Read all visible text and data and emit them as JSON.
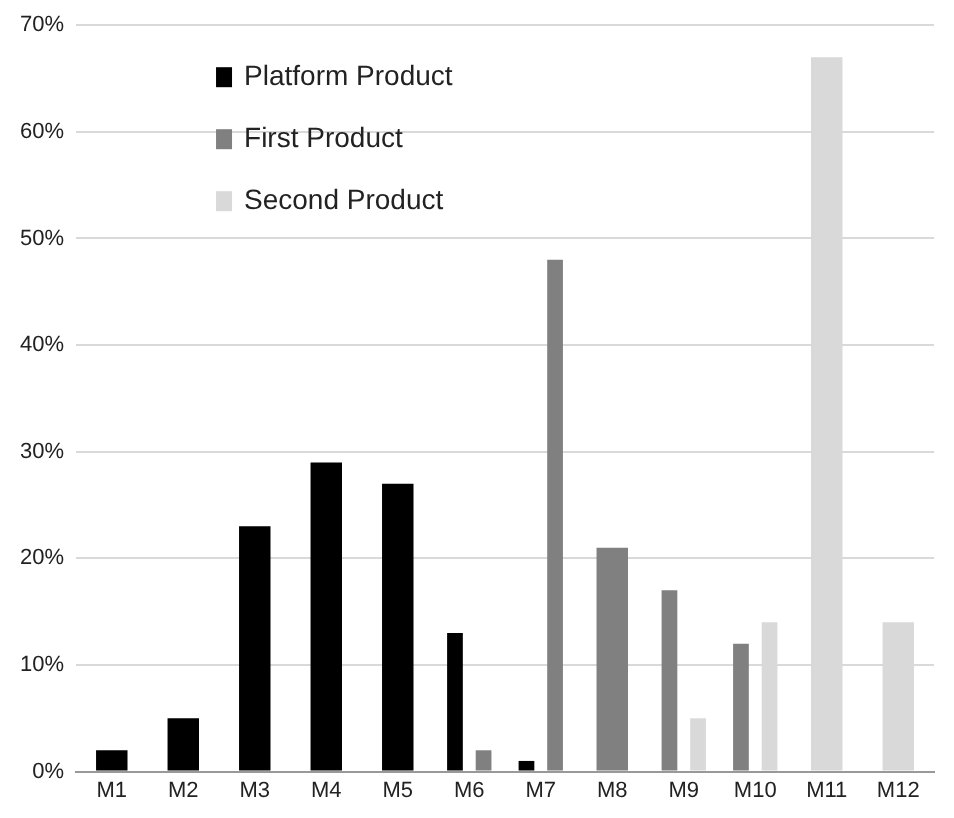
{
  "chart_data": {
    "type": "bar",
    "categories": [
      "M1",
      "M2",
      "M3",
      "M4",
      "M5",
      "M6",
      "M7",
      "M8",
      "M9",
      "M10",
      "M11",
      "M12"
    ],
    "series": [
      {
        "name": "Platform Product",
        "color": "#000000",
        "values": [
          2,
          5,
          23,
          29,
          27,
          13,
          1,
          null,
          null,
          null,
          null,
          null
        ]
      },
      {
        "name": "First Product",
        "color": "#808080",
        "values": [
          null,
          null,
          null,
          null,
          null,
          2,
          48,
          21,
          17,
          12,
          null,
          null
        ]
      },
      {
        "name": "Second Product",
        "color": "#d9d9d9",
        "values": [
          null,
          null,
          null,
          null,
          null,
          null,
          null,
          null,
          5,
          14,
          67,
          14
        ]
      }
    ],
    "ylim": [
      0,
      70
    ],
    "yticks": [
      {
        "value": 0,
        "label": "0%"
      },
      {
        "value": 10,
        "label": "10%"
      },
      {
        "value": 20,
        "label": "20%"
      },
      {
        "value": 30,
        "label": "30%"
      },
      {
        "value": 40,
        "label": "40%"
      },
      {
        "value": 50,
        "label": "50%"
      },
      {
        "value": 60,
        "label": "60%"
      },
      {
        "value": 70,
        "label": "70%"
      }
    ],
    "grid": "y",
    "legend": "top left"
  }
}
